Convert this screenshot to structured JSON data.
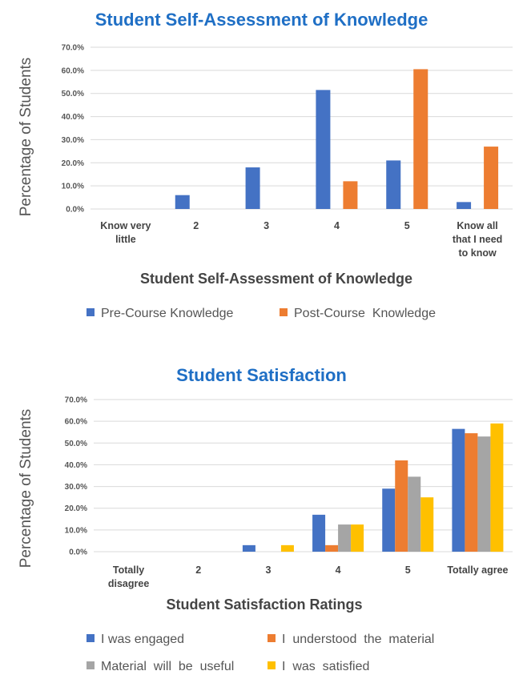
{
  "chart_data": [
    {
      "type": "bar",
      "title": "Student Self-Assessment of Knowledge",
      "xlabel": "Student Self-Assessment of Knowledge",
      "ylabel": "Percentage of Students",
      "categories": [
        [
          "Know very",
          "little"
        ],
        [
          "2"
        ],
        [
          "3"
        ],
        [
          "4"
        ],
        [
          "5"
        ],
        [
          "Know all",
          "that I need",
          "to know"
        ]
      ],
      "ylim": [
        0,
        70
      ],
      "yticks": [
        "0.0%",
        "10.0%",
        "20.0%",
        "30.0%",
        "40.0%",
        "50.0%",
        "60.0%",
        "70.0%"
      ],
      "grid": true,
      "legend": "bottom",
      "series": [
        {
          "name": "Pre-Course Knowledge",
          "color": "#4472C4",
          "values": [
            0,
            6,
            18,
            51.5,
            21,
            3
          ]
        },
        {
          "name": "Post-Course  Knowledge",
          "color": "#ED7D31",
          "values": [
            0,
            0,
            0,
            12,
            60.5,
            27
          ]
        }
      ]
    },
    {
      "type": "bar",
      "title": "Student Satisfaction",
      "xlabel": "Student Satisfaction Ratings",
      "ylabel": "Percentage of Students",
      "categories": [
        [
          "Totally",
          "disagree"
        ],
        [
          "2"
        ],
        [
          "3"
        ],
        [
          "4"
        ],
        [
          "5"
        ],
        [
          "Totally agree"
        ]
      ],
      "ylim": [
        0,
        70
      ],
      "yticks": [
        "0.0%",
        "10.0%",
        "20.0%",
        "30.0%",
        "40.0%",
        "50.0%",
        "60.0%",
        "70.0%"
      ],
      "grid": true,
      "legend": "bottom",
      "series": [
        {
          "name": "I was engaged",
          "color": "#4472C4",
          "values": [
            0,
            0,
            3,
            17,
            29,
            56.5
          ]
        },
        {
          "name": "I  understood  the  material",
          "color": "#ED7D31",
          "values": [
            0,
            0,
            0,
            3,
            42,
            54.5
          ]
        },
        {
          "name": "Material  will  be  useful",
          "color": "#A5A5A5",
          "values": [
            0,
            0,
            0,
            12.5,
            34.5,
            53
          ]
        },
        {
          "name": "I  was  satisfied",
          "color": "#FFC000",
          "values": [
            0,
            0,
            3,
            12.5,
            25,
            59
          ]
        }
      ]
    }
  ]
}
